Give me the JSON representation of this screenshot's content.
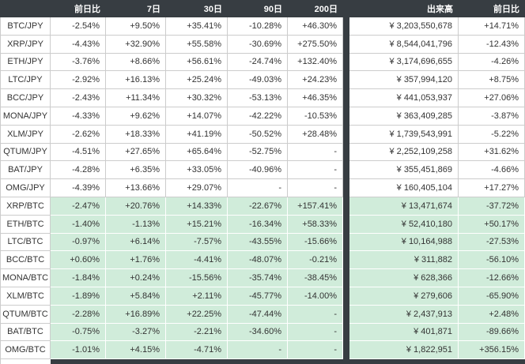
{
  "colors": {
    "header_bg": "#373d42",
    "separator_bg": "#373d42",
    "btc_row_bg": "#d0ecda",
    "jpy_row_bg": "#ffffff",
    "header_text": "#ffffff",
    "text": "#333333",
    "border": "#cccccc"
  },
  "chart_data": {
    "type": "table",
    "headers": [
      "",
      "前日比",
      "7日",
      "30日",
      "90日",
      "200日",
      "出来高",
      "前日比"
    ],
    "rows": [
      {
        "pair": "BTC/JPY",
        "group": "jpy",
        "values": [
          "-2.54%",
          "+9.50%",
          "+35.41%",
          "-10.28%",
          "+46.30%",
          "¥ 3,203,550,678",
          "+14.71%"
        ]
      },
      {
        "pair": "XRP/JPY",
        "group": "jpy",
        "values": [
          "-4.43%",
          "+32.90%",
          "+55.58%",
          "-30.69%",
          "+275.50%",
          "¥ 8,544,041,796",
          "-12.43%"
        ]
      },
      {
        "pair": "ETH/JPY",
        "group": "jpy",
        "values": [
          "-3.76%",
          "+8.66%",
          "+56.61%",
          "-24.74%",
          "+132.40%",
          "¥ 3,174,696,655",
          "-4.26%"
        ]
      },
      {
        "pair": "LTC/JPY",
        "group": "jpy",
        "values": [
          "-2.92%",
          "+16.13%",
          "+25.24%",
          "-49.03%",
          "+24.23%",
          "¥ 357,994,120",
          "+8.75%"
        ]
      },
      {
        "pair": "BCC/JPY",
        "group": "jpy",
        "values": [
          "-2.43%",
          "+11.34%",
          "+30.32%",
          "-53.13%",
          "+46.35%",
          "¥ 441,053,937",
          "+27.06%"
        ]
      },
      {
        "pair": "MONA/JPY",
        "group": "jpy",
        "values": [
          "-4.33%",
          "+9.62%",
          "+14.07%",
          "-42.22%",
          "-10.53%",
          "¥ 363,409,285",
          "-3.87%"
        ]
      },
      {
        "pair": "XLM/JPY",
        "group": "jpy",
        "values": [
          "-2.62%",
          "+18.33%",
          "+41.19%",
          "-50.52%",
          "+28.48%",
          "¥ 1,739,543,991",
          "-5.22%"
        ]
      },
      {
        "pair": "QTUM/JPY",
        "group": "jpy",
        "values": [
          "-4.51%",
          "+27.65%",
          "+65.64%",
          "-52.75%",
          "-",
          "¥ 2,252,109,258",
          "+31.62%"
        ]
      },
      {
        "pair": "BAT/JPY",
        "group": "jpy",
        "values": [
          "-4.28%",
          "+6.35%",
          "+33.05%",
          "-40.96%",
          "-",
          "¥ 355,451,869",
          "-4.66%"
        ]
      },
      {
        "pair": "OMG/JPY",
        "group": "jpy",
        "values": [
          "-4.39%",
          "+13.66%",
          "+29.07%",
          "-",
          "-",
          "¥ 160,405,104",
          "+17.27%"
        ]
      },
      {
        "pair": "XRP/BTC",
        "group": "btc",
        "values": [
          "-2.47%",
          "+20.76%",
          "+14.33%",
          "-22.67%",
          "+157.41%",
          "¥ 13,471,674",
          "-37.72%"
        ]
      },
      {
        "pair": "ETH/BTC",
        "group": "btc",
        "values": [
          "-1.40%",
          "-1.13%",
          "+15.21%",
          "-16.34%",
          "+58.33%",
          "¥ 52,410,180",
          "+50.17%"
        ]
      },
      {
        "pair": "LTC/BTC",
        "group": "btc",
        "values": [
          "-0.97%",
          "+6.14%",
          "-7.57%",
          "-43.55%",
          "-15.66%",
          "¥ 10,164,988",
          "-27.53%"
        ]
      },
      {
        "pair": "BCC/BTC",
        "group": "btc",
        "values": [
          "+0.60%",
          "+1.76%",
          "-4.41%",
          "-48.07%",
          "-0.21%",
          "¥ 311,882",
          "-56.10%"
        ]
      },
      {
        "pair": "MONA/BTC",
        "group": "btc",
        "values": [
          "-1.84%",
          "+0.24%",
          "-15.56%",
          "-35.74%",
          "-38.45%",
          "¥ 628,366",
          "-12.66%"
        ]
      },
      {
        "pair": "XLM/BTC",
        "group": "btc",
        "values": [
          "-1.89%",
          "+5.84%",
          "+2.11%",
          "-45.77%",
          "-14.00%",
          "¥ 279,606",
          "-65.90%"
        ]
      },
      {
        "pair": "QTUM/BTC",
        "group": "btc",
        "values": [
          "-2.28%",
          "+16.89%",
          "+22.25%",
          "-47.44%",
          "-",
          "¥ 2,437,913",
          "+2.48%"
        ]
      },
      {
        "pair": "BAT/BTC",
        "group": "btc",
        "values": [
          "-0.75%",
          "-3.27%",
          "-2.21%",
          "-34.60%",
          "-",
          "¥ 401,871",
          "-89.66%"
        ]
      },
      {
        "pair": "OMG/BTC",
        "group": "btc",
        "values": [
          "-1.01%",
          "+4.15%",
          "-4.71%",
          "-",
          "-",
          "¥ 1,822,951",
          "+356.15%"
        ]
      }
    ]
  }
}
